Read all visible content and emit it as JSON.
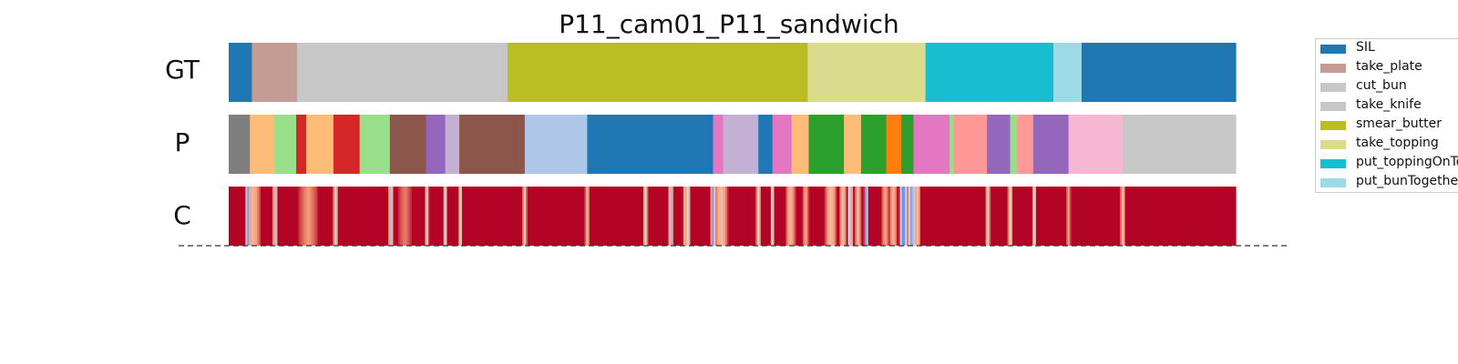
{
  "chart_data": {
    "type": "segmentation",
    "title": "P11_cam01_P11_sandwich",
    "rows": [
      {
        "name": "GT",
        "segments": [
          {
            "label": "SIL",
            "start": 0.0,
            "end": 2.3,
            "color": "#1f77b4"
          },
          {
            "label": "take_plate",
            "start": 2.3,
            "end": 6.8,
            "color": "#c49c94"
          },
          {
            "label": "cut_bun",
            "start": 6.8,
            "end": 27.7,
            "color": "#c7c7c7"
          },
          {
            "label": "smear_butter",
            "start": 27.7,
            "end": 57.5,
            "color": "#bcbd22"
          },
          {
            "label": "take_topping",
            "start": 57.5,
            "end": 69.2,
            "color": "#dbdb8d"
          },
          {
            "label": "put_toppingOnTop",
            "start": 69.2,
            "end": 81.9,
            "color": "#17becf"
          },
          {
            "label": "put_bunTogether",
            "start": 81.9,
            "end": 84.7,
            "color": "#9edae5"
          },
          {
            "label": "SIL",
            "start": 84.7,
            "end": 100.0,
            "color": "#1f77b4"
          }
        ]
      },
      {
        "name": "P",
        "segments": [
          {
            "start": 0.0,
            "end": 2.1,
            "color": "#7f7f7f"
          },
          {
            "start": 2.1,
            "end": 4.5,
            "color": "#ffbb78"
          },
          {
            "start": 4.5,
            "end": 6.7,
            "color": "#98df8a"
          },
          {
            "start": 6.7,
            "end": 7.7,
            "color": "#d62728"
          },
          {
            "start": 7.7,
            "end": 10.4,
            "color": "#ffbb78"
          },
          {
            "start": 10.4,
            "end": 13.0,
            "color": "#d62728"
          },
          {
            "start": 13.0,
            "end": 16.0,
            "color": "#98df8a"
          },
          {
            "start": 16.0,
            "end": 19.6,
            "color": "#8c564b"
          },
          {
            "start": 19.6,
            "end": 21.5,
            "color": "#9467bd"
          },
          {
            "start": 21.5,
            "end": 22.9,
            "color": "#c5b0d5"
          },
          {
            "start": 22.9,
            "end": 29.4,
            "color": "#8c564b"
          },
          {
            "start": 29.4,
            "end": 35.6,
            "color": "#aec7e8"
          },
          {
            "start": 35.6,
            "end": 48.1,
            "color": "#1f77b4"
          },
          {
            "start": 48.1,
            "end": 49.1,
            "color": "#e377c2"
          },
          {
            "start": 49.1,
            "end": 52.6,
            "color": "#c5b0d5"
          },
          {
            "start": 52.6,
            "end": 54.0,
            "color": "#1f77b4"
          },
          {
            "start": 54.0,
            "end": 55.9,
            "color": "#e377c2"
          },
          {
            "start": 55.9,
            "end": 57.6,
            "color": "#ffbb78"
          },
          {
            "start": 57.6,
            "end": 61.1,
            "color": "#2ca02c"
          },
          {
            "start": 61.1,
            "end": 62.8,
            "color": "#ffbb78"
          },
          {
            "start": 62.8,
            "end": 65.3,
            "color": "#2ca02c"
          },
          {
            "start": 65.3,
            "end": 66.8,
            "color": "#ff7f0e"
          },
          {
            "start": 66.8,
            "end": 68.0,
            "color": "#2ca02c"
          },
          {
            "start": 68.0,
            "end": 71.6,
            "color": "#e377c2"
          },
          {
            "start": 71.6,
            "end": 72.0,
            "color": "#98df8a"
          },
          {
            "start": 72.0,
            "end": 75.3,
            "color": "#ff9896"
          },
          {
            "start": 75.3,
            "end": 77.6,
            "color": "#9467bd"
          },
          {
            "start": 77.6,
            "end": 78.3,
            "color": "#98df8a"
          },
          {
            "start": 78.3,
            "end": 79.9,
            "color": "#ff9896"
          },
          {
            "start": 79.9,
            "end": 83.4,
            "color": "#9467bd"
          },
          {
            "start": 83.4,
            "end": 88.8,
            "color": "#f7b6d2"
          },
          {
            "start": 88.8,
            "end": 100.0,
            "color": "#c7c7c7"
          }
        ]
      },
      {
        "name": "C",
        "colormap": "coolwarm",
        "base": 1.0,
        "dips": [
          {
            "pos": 1.9,
            "value": 0.2,
            "width": 0.2
          },
          {
            "pos": 2.4,
            "value": 0.65,
            "width": 1.4
          },
          {
            "pos": 4.6,
            "value": 0.35,
            "width": 0.2
          },
          {
            "pos": 7.9,
            "value": 0.75,
            "width": 1.8
          },
          {
            "pos": 10.6,
            "value": 0.45,
            "width": 0.2
          },
          {
            "pos": 16.1,
            "value": 0.35,
            "width": 0.2
          },
          {
            "pos": 17.5,
            "value": 0.8,
            "width": 1.2
          },
          {
            "pos": 19.7,
            "value": 0.5,
            "width": 0.2
          },
          {
            "pos": 21.5,
            "value": 0.45,
            "width": 0.2
          },
          {
            "pos": 23.0,
            "value": 0.5,
            "width": 0.2
          },
          {
            "pos": 29.4,
            "value": 0.55,
            "width": 0.2
          },
          {
            "pos": 35.6,
            "value": 0.6,
            "width": 0.2
          },
          {
            "pos": 41.4,
            "value": 0.5,
            "width": 0.2
          },
          {
            "pos": 43.9,
            "value": 0.35,
            "width": 0.2
          },
          {
            "pos": 45.3,
            "value": 0.6,
            "width": 0.2
          },
          {
            "pos": 45.6,
            "value": 0.45,
            "width": 0.2
          },
          {
            "pos": 48.1,
            "value": 0.2,
            "width": 0.2
          },
          {
            "pos": 48.9,
            "value": 0.62,
            "width": 1.2
          },
          {
            "pos": 52.6,
            "value": 0.45,
            "width": 0.2
          },
          {
            "pos": 54.0,
            "value": 0.5,
            "width": 0.2
          },
          {
            "pos": 55.8,
            "value": 0.65,
            "width": 0.8
          },
          {
            "pos": 57.3,
            "value": 0.7,
            "width": 0.4
          },
          {
            "pos": 59.8,
            "value": 0.62,
            "width": 1.0
          },
          {
            "pos": 61.0,
            "value": 0.6,
            "width": 0.5
          },
          {
            "pos": 61.7,
            "value": 0.3,
            "width": 0.3
          },
          {
            "pos": 62.5,
            "value": 0.6,
            "width": 0.4
          },
          {
            "pos": 63.3,
            "value": 0.1,
            "width": 0.2
          },
          {
            "pos": 65.2,
            "value": 0.72,
            "width": 0.6
          },
          {
            "pos": 66.0,
            "value": 0.65,
            "width": 0.6
          },
          {
            "pos": 67.0,
            "value": 0.1,
            "width": 0.6
          },
          {
            "pos": 67.8,
            "value": 0.2,
            "width": 0.6
          },
          {
            "pos": 68.4,
            "value": 0.6,
            "width": 0.4
          },
          {
            "pos": 75.4,
            "value": 0.5,
            "width": 0.2
          },
          {
            "pos": 77.6,
            "value": 0.5,
            "width": 0.2
          },
          {
            "pos": 80.0,
            "value": 0.45,
            "width": 0.2
          },
          {
            "pos": 83.4,
            "value": 0.7,
            "width": 0.2
          },
          {
            "pos": 88.8,
            "value": 0.6,
            "width": 0.3
          }
        ]
      }
    ],
    "legend": {
      "placement": "upper-right",
      "entries": [
        {
          "label": "SIL",
          "color": "#1f77b4"
        },
        {
          "label": "take_plate",
          "color": "#c49c94"
        },
        {
          "label": "cut_bun",
          "color": "#c7c7c7"
        },
        {
          "label": "take_knife",
          "color": "#c7c7c7"
        },
        {
          "label": "smear_butter",
          "color": "#bcbd22"
        },
        {
          "label": "take_topping",
          "color": "#dbdb8d"
        },
        {
          "label": "put_toppingOnTop",
          "color": "#17becf"
        },
        {
          "label": "put_bunTogether",
          "color": "#9edae5"
        }
      ]
    }
  }
}
